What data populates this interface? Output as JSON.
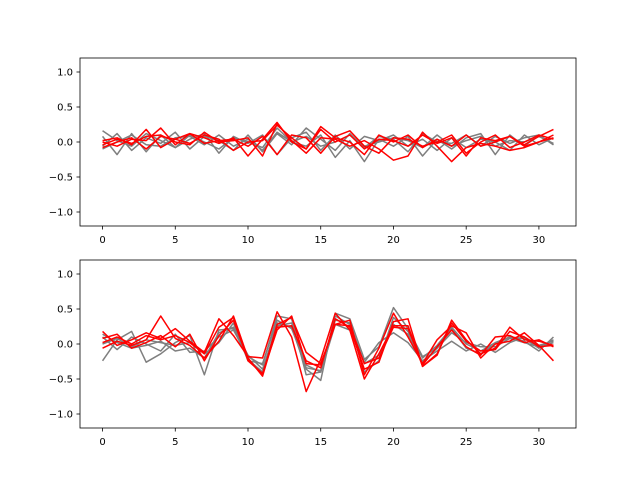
{
  "colors": {
    "gray": "#7f7f7f",
    "red": "#ff0000",
    "axis": "#000000",
    "background": "#ffffff"
  },
  "chart_data": [
    {
      "type": "line",
      "xlim": [
        -1.55,
        32.55
      ],
      "ylim": [
        -1.2,
        1.2
      ],
      "xticks": [
        0,
        5,
        10,
        15,
        20,
        25,
        30
      ],
      "yticks": [
        -1.0,
        -0.5,
        0.0,
        0.5,
        1.0
      ],
      "xtick_labels": [
        "0",
        "5",
        "10",
        "15",
        "20",
        "25",
        "30"
      ],
      "ytick_labels": [
        "−1.0",
        "−0.5",
        "0.0",
        "0.5",
        "1.0"
      ],
      "grid": false,
      "x": [
        0,
        1,
        2,
        3,
        4,
        5,
        6,
        7,
        8,
        9,
        10,
        11,
        12,
        13,
        14,
        15,
        16,
        17,
        18,
        19,
        20,
        21,
        22,
        23,
        24,
        25,
        26,
        27,
        28,
        29,
        30,
        31
      ],
      "series": [
        {
          "color": "gray",
          "values": [
            0.16,
            0.02,
            -0.06,
            0.12,
            0.02,
            -0.08,
            0.1,
            0.0,
            -0.1,
            0.06,
            0.0,
            -0.08,
            0.2,
            0.0,
            -0.06,
            0.1,
            -0.22,
            0.02,
            -0.28,
            0.04,
            -0.06,
            0.08,
            -0.2,
            0.04,
            -0.1,
            0.06,
            0.12,
            -0.18,
            0.1,
            -0.06,
            0.1,
            -0.04
          ]
        },
        {
          "color": "gray",
          "values": [
            0.08,
            -0.18,
            0.12,
            -0.14,
            0.1,
            -0.08,
            0.04,
            0.12,
            -0.16,
            0.08,
            -0.02,
            0.1,
            -0.18,
            0.06,
            0.14,
            -0.12,
            0.1,
            -0.1,
            0.08,
            0.02,
            0.1,
            -0.06,
            0.04,
            -0.12,
            0.06,
            -0.08,
            0.04,
            0.0,
            -0.12,
            0.1,
            -0.04,
            0.06
          ]
        },
        {
          "color": "gray",
          "values": [
            -0.06,
            0.12,
            -0.12,
            0.06,
            -0.02,
            0.14,
            -0.1,
            0.08,
            0.02,
            -0.12,
            0.1,
            -0.14,
            0.12,
            -0.04,
            0.2,
            0.04,
            -0.12,
            0.12,
            -0.08,
            0.08,
            0.04,
            -0.14,
            0.12,
            0.0,
            -0.02,
            0.1,
            -0.06,
            0.08,
            -0.02,
            0.06,
            0.1,
            -0.04
          ]
        },
        {
          "color": "gray",
          "values": [
            -0.1,
            0.0,
            0.1,
            -0.04,
            -0.06,
            0.06,
            0.08,
            -0.04,
            0.1,
            -0.06,
            0.04,
            -0.12,
            0.14,
            0.0,
            0.08,
            -0.06,
            0.0,
            0.1,
            -0.06,
            0.0,
            0.06,
            0.02,
            -0.08,
            0.1,
            -0.06,
            0.02,
            0.08,
            -0.06,
            0.02,
            0.0,
            0.08,
            -0.02
          ]
        },
        {
          "color": "red",
          "values": [
            0.02,
            0.06,
            -0.04,
            0.18,
            -0.08,
            0.04,
            0.12,
            0.06,
            -0.02,
            0.06,
            -0.2,
            0.04,
            0.28,
            0.0,
            -0.1,
            0.22,
            0.06,
            0.0,
            -0.18,
            0.1,
            0.0,
            0.1,
            -0.08,
            0.04,
            -0.06,
            0.1,
            -0.06,
            0.0,
            0.08,
            -0.04,
            0.08,
            0.18
          ]
        },
        {
          "color": "red",
          "values": [
            -0.04,
            0.04,
            -0.02,
            0.08,
            0.1,
            0.0,
            -0.04,
            0.14,
            0.0,
            0.02,
            0.06,
            -0.2,
            0.26,
            0.02,
            -0.16,
            0.06,
            0.04,
            -0.06,
            0.02,
            -0.1,
            -0.26,
            -0.2,
            0.14,
            -0.06,
            -0.28,
            -0.08,
            -0.02,
            -0.06,
            -0.12,
            -0.08,
            0.0,
            0.06
          ]
        },
        {
          "color": "red",
          "values": [
            0.0,
            -0.06,
            0.04,
            0.02,
            0.2,
            -0.04,
            0.12,
            -0.02,
            0.02,
            0.04,
            -0.06,
            0.08,
            -0.18,
            0.1,
            0.06,
            -0.16,
            0.08,
            0.16,
            -0.06,
            -0.16,
            0.06,
            0.04,
            -0.06,
            0.0,
            0.1,
            -0.16,
            0.0,
            0.1,
            -0.08,
            0.0,
            0.1,
            0.04
          ]
        },
        {
          "color": "red",
          "values": [
            -0.08,
            0.0,
            0.06,
            -0.1,
            0.08,
            0.04,
            -0.02,
            0.1,
            0.04,
            -0.12,
            0.0,
            0.02,
            0.24,
            0.06,
            -0.1,
            0.18,
            0.0,
            0.1,
            -0.1,
            0.04,
            0.02,
            -0.06,
            0.1,
            -0.02,
            0.06,
            -0.2,
            0.06,
            0.02,
            0.08,
            -0.06,
            0.0,
            0.1
          ]
        }
      ]
    },
    {
      "type": "line",
      "xlim": [
        -1.55,
        32.55
      ],
      "ylim": [
        -1.2,
        1.2
      ],
      "xticks": [
        0,
        5,
        10,
        15,
        20,
        25,
        30
      ],
      "yticks": [
        -1.0,
        -0.5,
        0.0,
        0.5,
        1.0
      ],
      "xtick_labels": [
        "0",
        "5",
        "10",
        "15",
        "20",
        "25",
        "30"
      ],
      "ytick_labels": [
        "−1.0",
        "−0.5",
        "0.0",
        "0.5",
        "1.0"
      ],
      "grid": false,
      "x": [
        0,
        1,
        2,
        3,
        4,
        5,
        6,
        7,
        8,
        9,
        10,
        11,
        12,
        13,
        14,
        15,
        16,
        17,
        18,
        19,
        20,
        21,
        22,
        23,
        24,
        25,
        26,
        27,
        28,
        29,
        30,
        31
      ],
      "series": [
        {
          "color": "gray",
          "values": [
            -0.24,
            0.06,
            0.18,
            -0.26,
            -0.14,
            0.02,
            0.12,
            -0.44,
            0.2,
            0.22,
            -0.22,
            -0.4,
            0.3,
            0.24,
            -0.36,
            -0.52,
            0.44,
            0.36,
            -0.22,
            -0.04,
            0.52,
            0.22,
            -0.18,
            -0.06,
            0.22,
            -0.06,
            -0.14,
            0.0,
            0.1,
            0.04,
            -0.1,
            0.1
          ]
        },
        {
          "color": "gray",
          "values": [
            0.1,
            -0.08,
            0.1,
            0.0,
            -0.1,
            0.14,
            -0.12,
            -0.1,
            0.1,
            0.2,
            -0.18,
            -0.3,
            0.4,
            0.36,
            -0.44,
            -0.4,
            0.28,
            0.2,
            -0.26,
            0.02,
            0.16,
            0.02,
            -0.24,
            -0.1,
            0.04,
            -0.1,
            0.0,
            -0.12,
            0.02,
            0.1,
            -0.02,
            0.04
          ]
        },
        {
          "color": "gray",
          "values": [
            0.0,
            0.08,
            -0.04,
            0.06,
            0.02,
            -0.02,
            0.02,
            -0.14,
            0.02,
            0.3,
            -0.24,
            -0.28,
            0.34,
            0.22,
            -0.3,
            -0.4,
            0.4,
            0.28,
            -0.4,
            -0.24,
            0.38,
            0.18,
            -0.2,
            -0.02,
            0.24,
            0.0,
            -0.1,
            0.02,
            0.1,
            0.08,
            -0.06,
            0.02
          ]
        },
        {
          "color": "gray",
          "values": [
            0.14,
            0.02,
            -0.06,
            -0.02,
            0.04,
            -0.1,
            -0.06,
            -0.2,
            0.16,
            0.24,
            -0.16,
            -0.36,
            0.26,
            0.3,
            -0.34,
            -0.38,
            0.34,
            0.3,
            -0.28,
            -0.16,
            0.28,
            0.14,
            -0.26,
            -0.06,
            0.16,
            0.02,
            -0.04,
            -0.04,
            0.08,
            0.02,
            -0.04,
            0.06
          ]
        },
        {
          "color": "red",
          "values": [
            0.18,
            -0.02,
            0.06,
            0.16,
            0.08,
            0.22,
            0.04,
            -0.12,
            0.36,
            0.12,
            -0.18,
            -0.2,
            0.46,
            0.1,
            -0.68,
            -0.22,
            0.44,
            0.2,
            -0.5,
            -0.14,
            0.26,
            0.26,
            -0.32,
            -0.16,
            0.34,
            0.06,
            -0.14,
            -0.06,
            0.24,
            0.06,
            0.04,
            -0.02
          ]
        },
        {
          "color": "red",
          "values": [
            -0.06,
            0.04,
            -0.02,
            0.06,
            0.4,
            0.08,
            -0.02,
            -0.2,
            0.04,
            0.4,
            -0.2,
            -0.46,
            0.24,
            0.26,
            -0.24,
            -0.34,
            0.36,
            0.24,
            -0.36,
            -0.26,
            0.32,
            0.36,
            -0.32,
            -0.14,
            0.3,
            0.04,
            -0.1,
            -0.08,
            0.18,
            0.1,
            -0.04,
            -0.02
          ]
        },
        {
          "color": "red",
          "values": [
            0.08,
            0.14,
            -0.06,
            0.02,
            0.12,
            -0.04,
            0.14,
            -0.24,
            0.12,
            0.34,
            -0.22,
            -0.44,
            0.28,
            0.38,
            -0.12,
            -0.28,
            0.28,
            0.34,
            -0.44,
            -0.06,
            0.44,
            0.1,
            -0.28,
            0.06,
            0.26,
            0.16,
            -0.2,
            0.0,
            0.04,
            0.16,
            -0.02,
            -0.24
          ]
        },
        {
          "color": "red",
          "values": [
            0.02,
            0.1,
            0.0,
            0.12,
            0.06,
            0.12,
            0.02,
            -0.14,
            0.24,
            0.38,
            -0.24,
            -0.42,
            0.2,
            0.4,
            -0.28,
            -0.3,
            0.28,
            0.26,
            -0.28,
            -0.2,
            0.24,
            0.22,
            -0.3,
            -0.04,
            0.2,
            -0.04,
            -0.16,
            0.1,
            0.12,
            0.02,
            0.06,
            -0.04
          ]
        }
      ]
    }
  ]
}
